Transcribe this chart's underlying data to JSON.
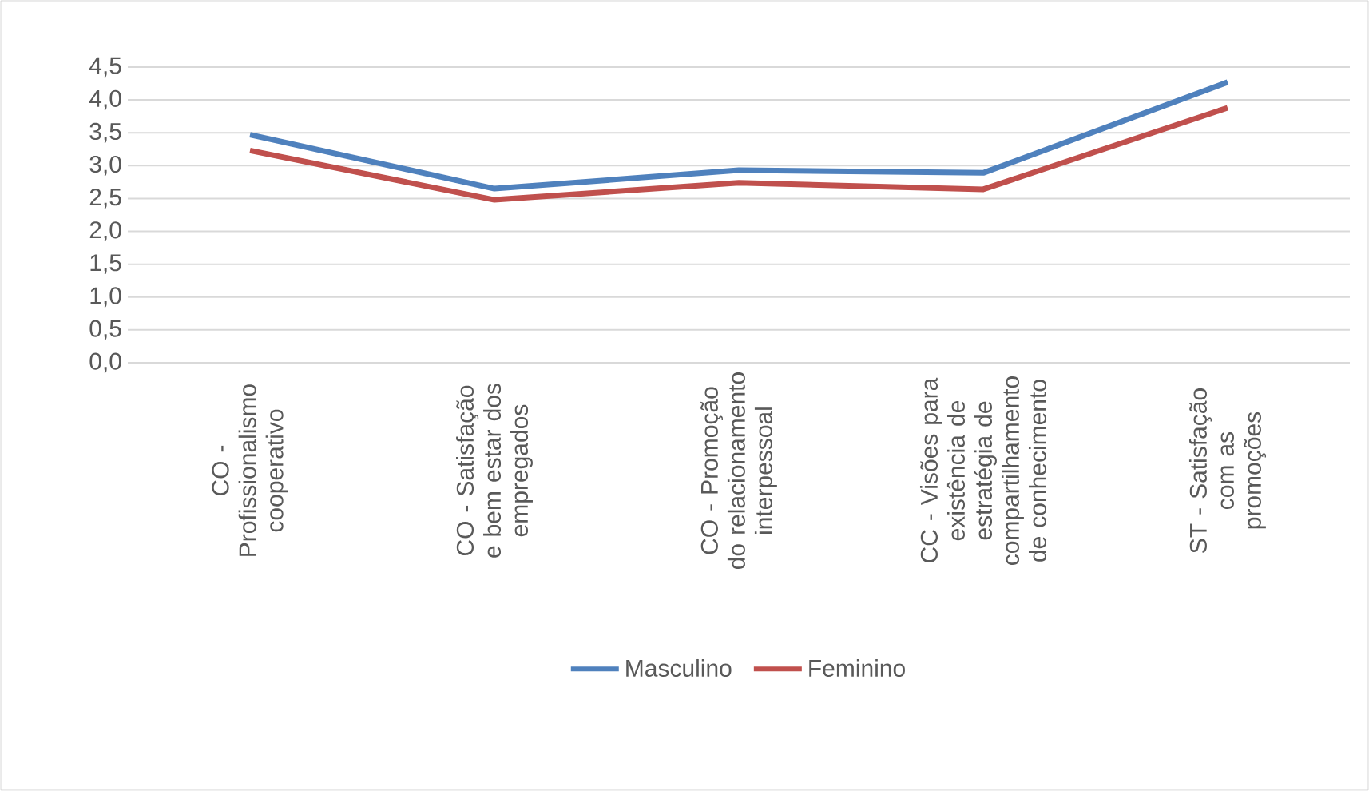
{
  "chart_data": {
    "type": "line",
    "categories": [
      "CO - Profissionalismo cooperativo",
      "CO - Satisfação e bem estar dos empregados",
      "CO - Promoção do relacionamento interpessoal",
      "CC - Visões para existência de estratégia de compartilhamento de conhecimento",
      "ST - Satisfação com as promoções"
    ],
    "series": [
      {
        "name": "Masculino",
        "color": "#4f81bd",
        "values": [
          3.47,
          2.65,
          2.93,
          2.89,
          4.27
        ]
      },
      {
        "name": "Feminino",
        "color": "#c0504d",
        "values": [
          3.23,
          2.48,
          2.74,
          2.64,
          3.88
        ]
      }
    ],
    "ylim": [
      0,
      4.5
    ],
    "yticks": [
      {
        "value": 0,
        "label": "0,0"
      },
      {
        "value": 0.5,
        "label": "0,5"
      },
      {
        "value": 1,
        "label": "1,0"
      },
      {
        "value": 1.5,
        "label": "1,5"
      },
      {
        "value": 2,
        "label": "2,0"
      },
      {
        "value": 2.5,
        "label": "2,5"
      },
      {
        "value": 3,
        "label": "3,0"
      },
      {
        "value": 3.5,
        "label": "3,5"
      },
      {
        "value": 4,
        "label": "4,0"
      },
      {
        "value": 4.5,
        "label": "4,5"
      }
    ],
    "grid": "y",
    "legend": "bottom",
    "marker": "none",
    "line_style": "solid"
  }
}
